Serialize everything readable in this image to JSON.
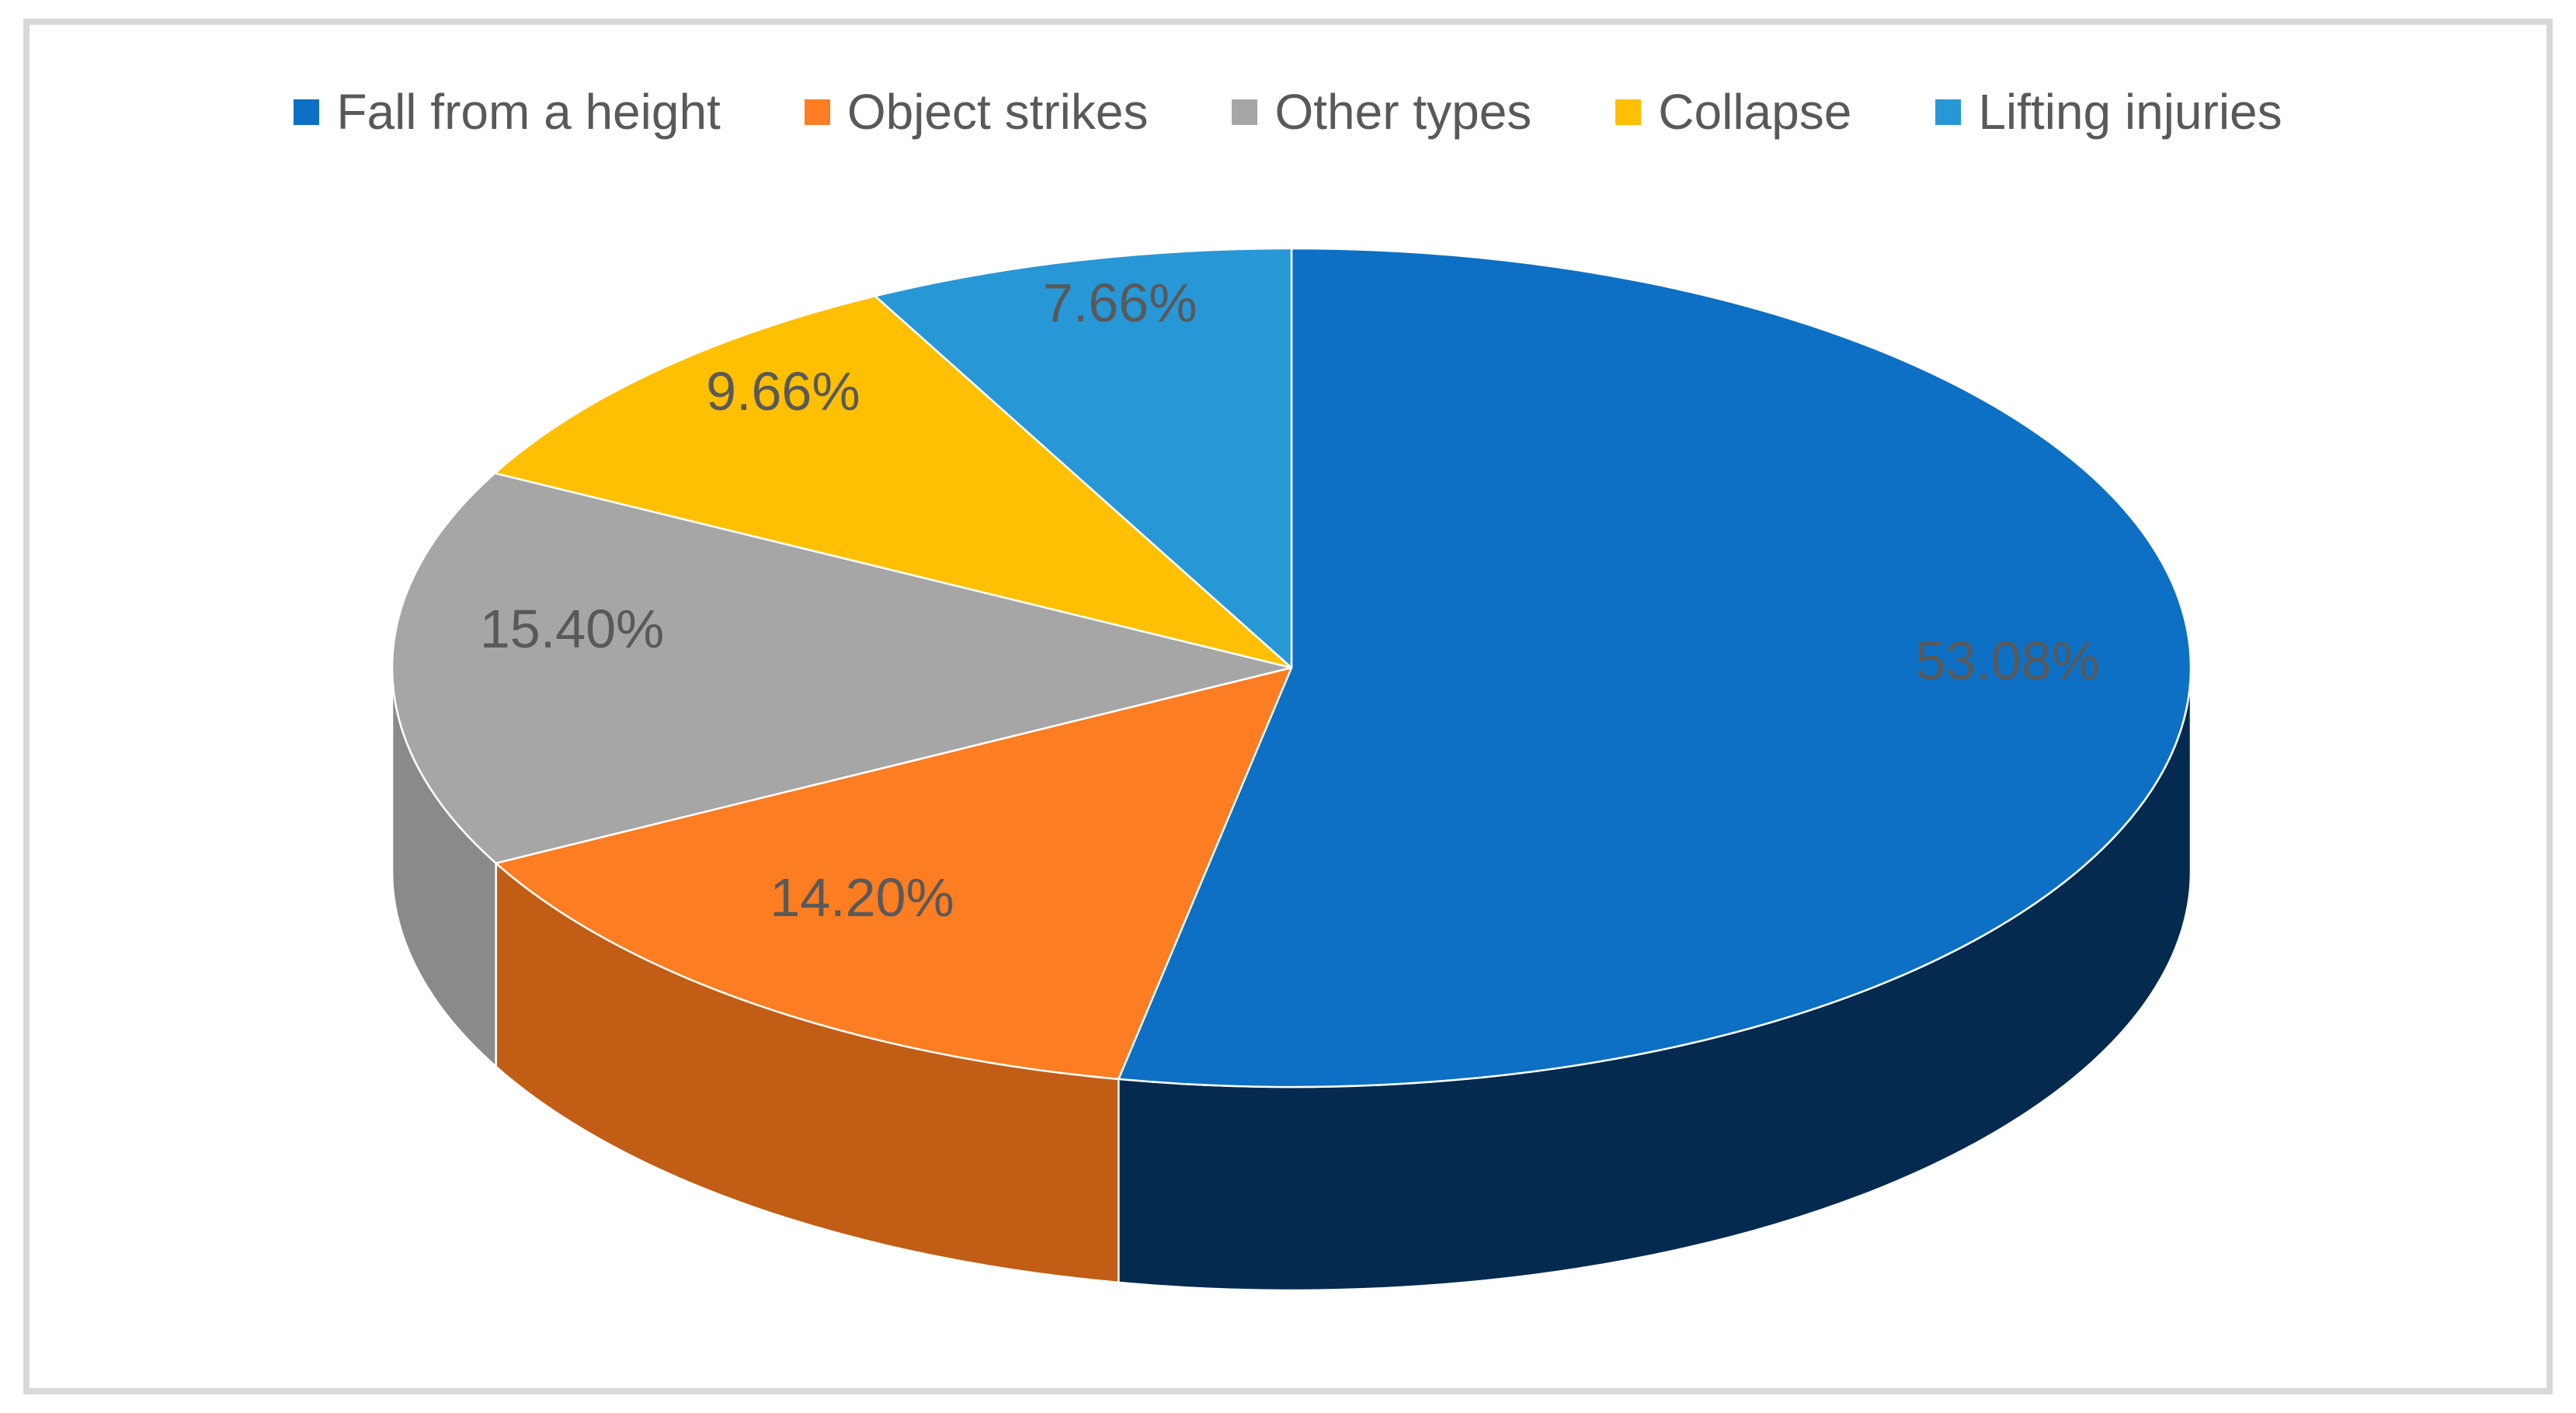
{
  "chart_data": {
    "type": "pie",
    "effect": "3d",
    "title": "",
    "categories": [
      "Fall from a height",
      "Object strikes",
      "Other types",
      "Collapse",
      "Lifting injuries"
    ],
    "values": [
      53.08,
      14.2,
      15.4,
      9.66,
      7.66
    ],
    "data_labels": [
      "53.08%",
      "14.20%",
      "15.40%",
      "9.66%",
      "7.66%"
    ],
    "colors": [
      "#0d70c4",
      "#fc7d22",
      "#a6a6a6",
      "#ffc003",
      "#2897d6"
    ],
    "side_colors": [
      "#052a4f",
      "#c25d15",
      "#8a8a8a",
      "#bb8d00",
      "#1c6f9e"
    ],
    "label_color": "#595959",
    "legend_position": "top",
    "start_angle_deg": 0,
    "direction": "clockwise",
    "background_color": "#ffffff",
    "frame_border_color": "#d8d8d8"
  }
}
